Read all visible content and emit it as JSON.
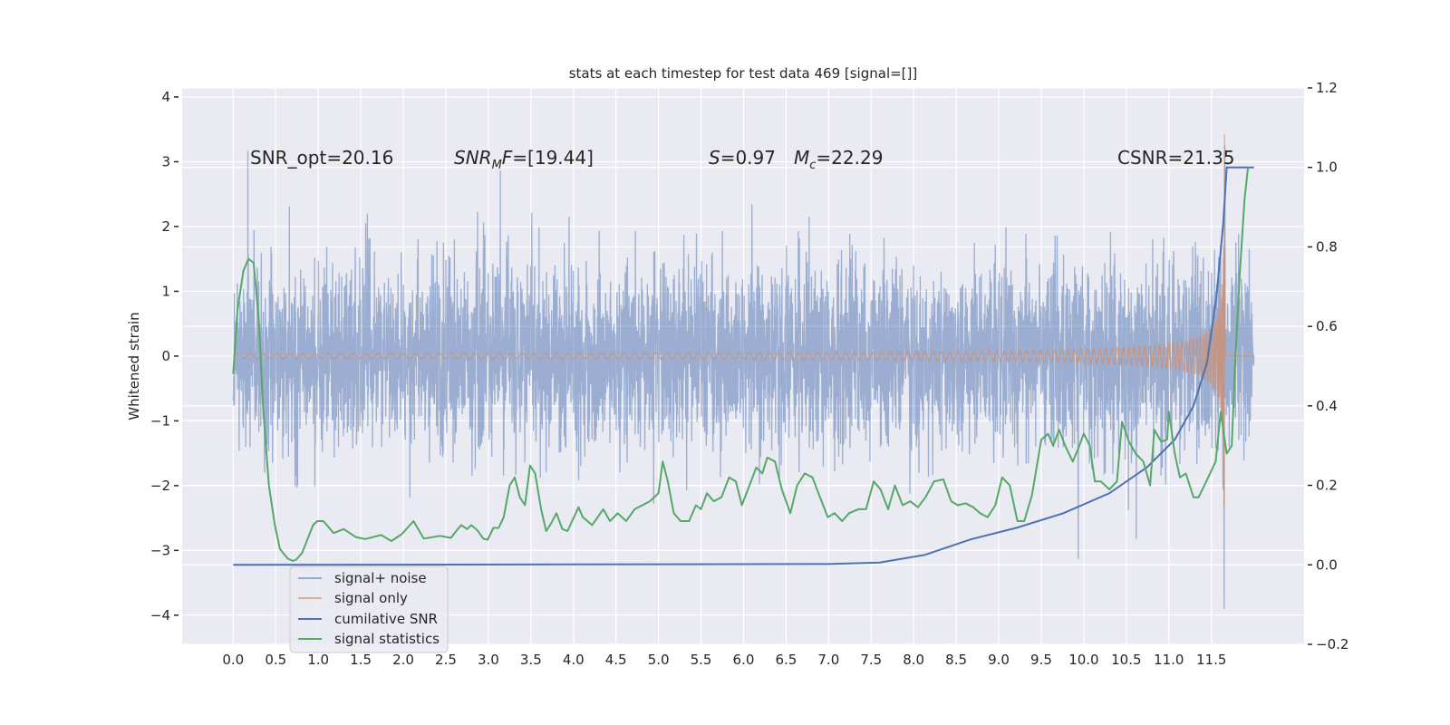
{
  "chart_data": {
    "type": "line",
    "title": "stats at each timestep for test data 469 [signal=[]]",
    "ylabel": "Whitened strain",
    "xlabel": "",
    "xlim": [
      -0.6,
      12.59
    ],
    "ylim": [
      -4.45,
      4.14
    ],
    "ylim_right": [
      -0.2,
      1.2
    ],
    "grid": true,
    "legend_placement": "lower-left",
    "x_ticks": [
      "0.0",
      "0.5",
      "1.0",
      "1.5",
      "2.0",
      "2.5",
      "3.0",
      "3.5",
      "4.0",
      "4.5",
      "5.0",
      "5.5",
      "6.0",
      "6.5",
      "7.0",
      "7.5",
      "8.0",
      "8.5",
      "9.0",
      "9.5",
      "10.0",
      "10.5",
      "11.0",
      "11.5"
    ],
    "y_ticks_left": [
      "4",
      "3",
      "2",
      "1",
      "0",
      "−1",
      "−2",
      "−3",
      "−4"
    ],
    "y_ticks_right": [
      "1.2",
      "1.0",
      "0.8",
      "0.6",
      "0.4",
      "0.2",
      "0.0",
      "−0.2"
    ],
    "annotations": {
      "snr_opt": "SNR_opt=20.16",
      "snr_mf": {
        "base": "SNR",
        "sub": "M",
        "tail": "F",
        "value": "=[19.44]"
      },
      "s": {
        "symbol": "S",
        "value": "=0.97"
      },
      "mc": {
        "symbol": "M",
        "sub": "c",
        "value": "=22.29"
      },
      "csnr": "CSNR=21.35"
    },
    "series": [
      {
        "name": "signal+ noise",
        "axis": "left",
        "color": "#4c72b0",
        "alpha": 0.5,
        "x_range": [
          0,
          12.0
        ],
        "note_visible": "dense noisy strain, roughly ±2 with peaks to 3.8 / -4.1"
      },
      {
        "name": "signal only",
        "axis": "left",
        "color": "#dd8452",
        "merger_time": 11.66,
        "peak": [
          3.4,
          -3.8
        ]
      },
      {
        "name": "cumilative SNR",
        "axis": "right",
        "color": "#4c72b0",
        "x": [
          0,
          7.0,
          7.6,
          8.13,
          8.67,
          9.22,
          9.76,
          10.3,
          10.74,
          11.07,
          11.29,
          11.45,
          11.56,
          11.64,
          11.68,
          12.0
        ],
        "y": [
          0,
          0.002,
          0.006,
          0.025,
          0.064,
          0.094,
          0.13,
          0.18,
          0.245,
          0.315,
          0.4,
          0.51,
          0.675,
          0.86,
          1.0,
          1.0
        ]
      },
      {
        "name": "signal statistics",
        "axis": "right",
        "color": "#55a868",
        "x": [
          0,
          0.05,
          0.12,
          0.18,
          0.24,
          0.3,
          0.35,
          0.42,
          0.49,
          0.55,
          0.64,
          0.7,
          0.74,
          0.81,
          0.94,
          0.99,
          1.06,
          1.18,
          1.3,
          1.44,
          1.55,
          1.74,
          1.86,
          1.98,
          2.12,
          2.24,
          2.43,
          2.56,
          2.64,
          2.68,
          2.75,
          2.8,
          2.87,
          2.94,
          2.99,
          3.06,
          3.12,
          3.18,
          3.25,
          3.31,
          3.37,
          3.43,
          3.49,
          3.55,
          3.62,
          3.68,
          3.74,
          3.8,
          3.87,
          3.93,
          4.06,
          4.11,
          4.22,
          4.35,
          4.43,
          4.52,
          4.62,
          4.72,
          4.81,
          4.9,
          5.0,
          5.05,
          5.11,
          5.18,
          5.26,
          5.36,
          5.44,
          5.5,
          5.57,
          5.65,
          5.74,
          5.83,
          5.91,
          5.98,
          6.07,
          6.15,
          6.22,
          6.28,
          6.37,
          6.45,
          6.55,
          6.63,
          6.72,
          6.81,
          6.89,
          6.99,
          7.07,
          7.16,
          7.24,
          7.35,
          7.44,
          7.53,
          7.61,
          7.7,
          7.78,
          7.87,
          7.96,
          8.05,
          8.14,
          8.24,
          8.35,
          8.44,
          8.52,
          8.61,
          8.7,
          8.78,
          8.87,
          8.96,
          9.04,
          9.13,
          9.22,
          9.3,
          9.39,
          9.5,
          9.58,
          9.64,
          9.71,
          9.78,
          9.87,
          9.93,
          10.0,
          10.07,
          10.13,
          10.2,
          10.3,
          10.39,
          10.45,
          10.53,
          10.61,
          10.7,
          10.78,
          10.83,
          10.91,
          10.98,
          11.0,
          11.07,
          11.13,
          11.2,
          11.29,
          11.35,
          11.44,
          11.55,
          11.61,
          11.68,
          11.74,
          11.78,
          11.83,
          11.89,
          11.93
        ],
        "y": [
          0.48,
          0.64,
          0.74,
          0.77,
          0.76,
          0.62,
          0.4,
          0.2,
          0.1,
          0.04,
          0.016,
          0.01,
          0.013,
          0.03,
          0.1,
          0.11,
          0.11,
          0.08,
          0.09,
          0.07,
          0.065,
          0.075,
          0.06,
          0.077,
          0.11,
          0.066,
          0.073,
          0.068,
          0.09,
          0.1,
          0.09,
          0.1,
          0.087,
          0.066,
          0.063,
          0.093,
          0.093,
          0.12,
          0.2,
          0.22,
          0.17,
          0.15,
          0.25,
          0.23,
          0.14,
          0.085,
          0.105,
          0.13,
          0.09,
          0.085,
          0.145,
          0.12,
          0.1,
          0.14,
          0.11,
          0.13,
          0.11,
          0.14,
          0.15,
          0.16,
          0.18,
          0.26,
          0.21,
          0.13,
          0.11,
          0.11,
          0.15,
          0.14,
          0.18,
          0.16,
          0.17,
          0.22,
          0.21,
          0.15,
          0.2,
          0.245,
          0.23,
          0.27,
          0.26,
          0.19,
          0.13,
          0.2,
          0.23,
          0.22,
          0.175,
          0.12,
          0.13,
          0.11,
          0.13,
          0.14,
          0.14,
          0.21,
          0.19,
          0.14,
          0.2,
          0.15,
          0.16,
          0.145,
          0.17,
          0.21,
          0.215,
          0.16,
          0.15,
          0.155,
          0.145,
          0.13,
          0.12,
          0.15,
          0.22,
          0.2,
          0.11,
          0.11,
          0.175,
          0.315,
          0.33,
          0.3,
          0.34,
          0.3,
          0.26,
          0.29,
          0.33,
          0.3,
          0.21,
          0.21,
          0.19,
          0.21,
          0.36,
          0.31,
          0.28,
          0.26,
          0.2,
          0.34,
          0.31,
          0.315,
          0.385,
          0.28,
          0.22,
          0.23,
          0.17,
          0.17,
          0.21,
          0.26,
          0.385,
          0.28,
          0.3,
          0.51,
          0.72,
          0.92,
          1.0
        ]
      }
    ],
    "legend": [
      "signal+ noise",
      "signal only",
      "cumilative SNR",
      "signal statistics"
    ],
    "colors": {
      "background": "#eaeaf2",
      "grid": "#ffffff",
      "noise": "#4c72b0",
      "signal": "#dd8452",
      "csnr": "#4c72b0",
      "stats": "#55a868"
    }
  }
}
